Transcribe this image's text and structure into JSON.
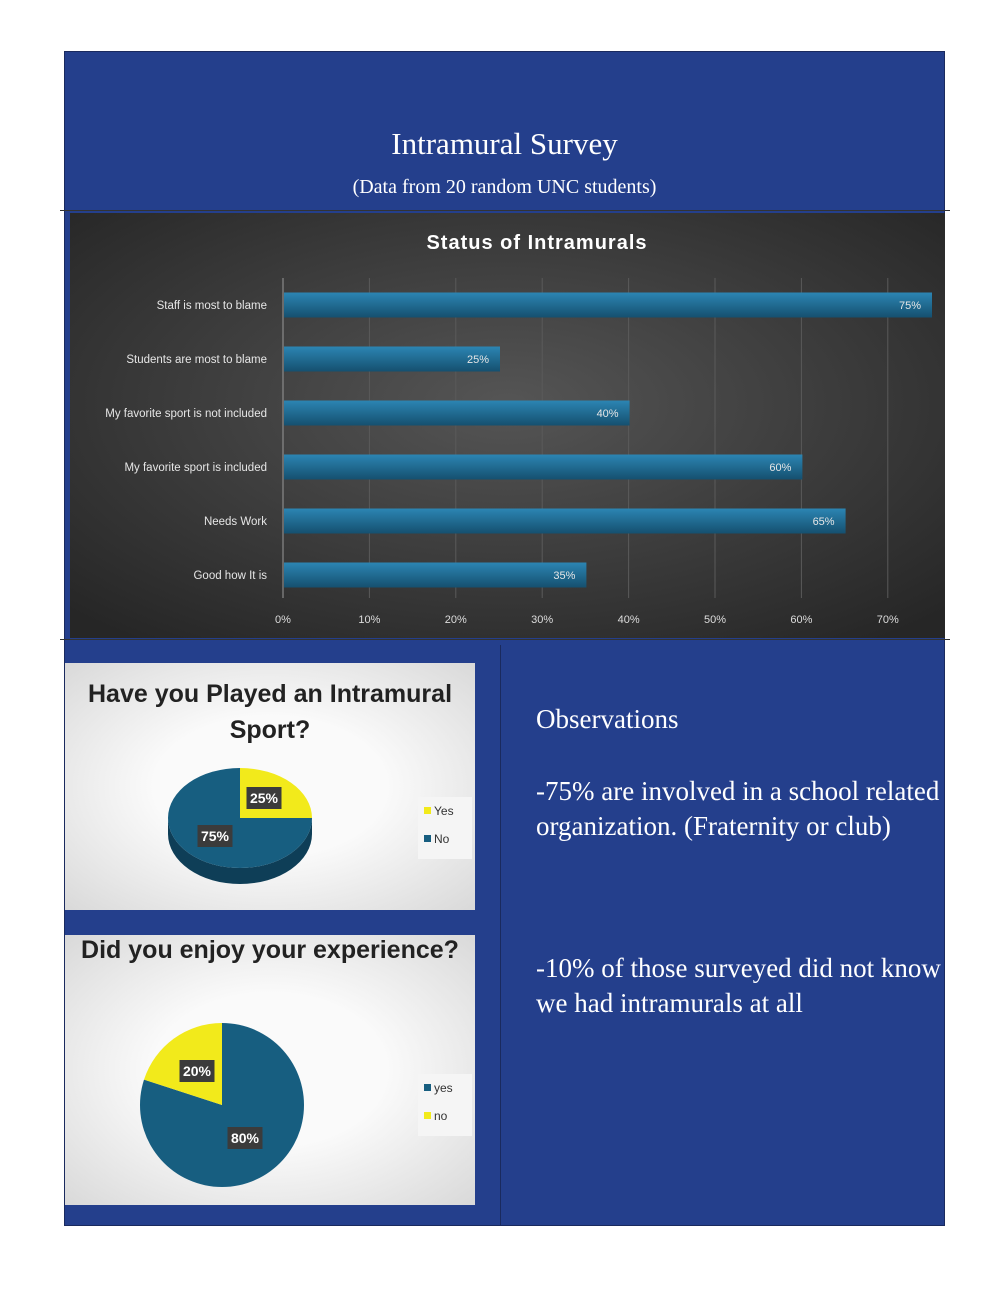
{
  "header": {
    "title": "Intramural Survey",
    "subtitle": "(Data from 20 random UNC students)"
  },
  "observations": {
    "heading": "Observations",
    "items": [
      "-75% are involved in a school related organization. (Fraternity or club)",
      "-10% of those surveyed did not know we had intramurals at all"
    ]
  },
  "colors": {
    "background": "#243f8c",
    "bar": "#1f6a94",
    "pie_blue": "#175e80",
    "pie_yellow": "#f2ea1b",
    "chart_bg": "#3a3a3a"
  },
  "chart_data": [
    {
      "type": "bar",
      "orientation": "horizontal",
      "title": "Status of Intramurals",
      "categories": [
        "Staff is most to blame",
        "Students are most to blame",
        "My favorite sport is not included",
        "My favorite sport is included",
        "Needs  Work",
        "Good how It is"
      ],
      "values": [
        75,
        25,
        40,
        60,
        65,
        35
      ],
      "data_labels": [
        "75%",
        "25%",
        "40%",
        "60%",
        "65%",
        "35%"
      ],
      "xlim": [
        0,
        75
      ],
      "x_ticks": [
        "0%",
        "10%",
        "20%",
        "30%",
        "40%",
        "50%",
        "60%",
        "70%"
      ],
      "grid": true
    },
    {
      "type": "pie",
      "style": "3d",
      "title": "Have you Played an Intramural Sport?",
      "categories": [
        "Yes",
        "No"
      ],
      "values": [
        25,
        75
      ],
      "data_labels": [
        "25%",
        "75%"
      ],
      "colors": [
        "#f2ea1b",
        "#175e80"
      ],
      "legend": "right"
    },
    {
      "type": "pie",
      "title": "Did you enjoy your experience?",
      "categories": [
        "yes",
        "no"
      ],
      "values": [
        80,
        20
      ],
      "data_labels": [
        "80%",
        "20%"
      ],
      "colors": [
        "#175e80",
        "#f2ea1b"
      ],
      "legend": "right"
    }
  ]
}
